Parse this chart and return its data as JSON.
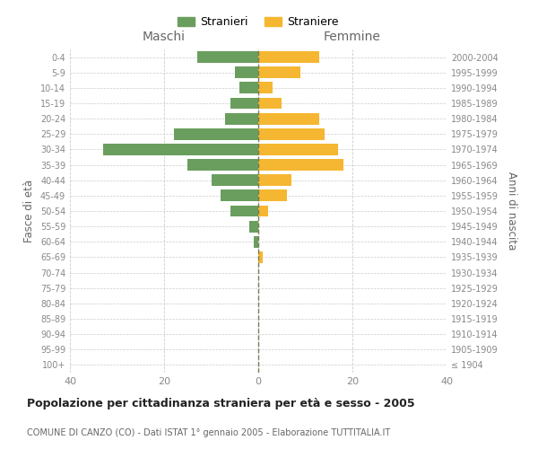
{
  "age_groups": [
    "100+",
    "95-99",
    "90-94",
    "85-89",
    "80-84",
    "75-79",
    "70-74",
    "65-69",
    "60-64",
    "55-59",
    "50-54",
    "45-49",
    "40-44",
    "35-39",
    "30-34",
    "25-29",
    "20-24",
    "15-19",
    "10-14",
    "5-9",
    "0-4"
  ],
  "birth_years": [
    "≤ 1904",
    "1905-1909",
    "1910-1914",
    "1915-1919",
    "1920-1924",
    "1925-1929",
    "1930-1934",
    "1935-1939",
    "1940-1944",
    "1945-1949",
    "1950-1954",
    "1955-1959",
    "1960-1964",
    "1965-1969",
    "1970-1974",
    "1975-1979",
    "1980-1984",
    "1985-1989",
    "1990-1994",
    "1995-1999",
    "2000-2004"
  ],
  "maschi": [
    0,
    0,
    0,
    0,
    0,
    0,
    0,
    0,
    1,
    2,
    6,
    8,
    10,
    15,
    33,
    18,
    7,
    6,
    4,
    5,
    13
  ],
  "femmine": [
    0,
    0,
    0,
    0,
    0,
    0,
    0,
    1,
    0,
    0,
    2,
    6,
    7,
    18,
    17,
    14,
    13,
    5,
    3,
    9,
    13
  ],
  "maschi_color": "#6a9e5e",
  "femmine_color": "#f5b731",
  "center_line_color": "#7a7a55",
  "grid_color": "#cccccc",
  "bg_color": "#ffffff",
  "title": "Popolazione per cittadinanza straniera per età e sesso - 2005",
  "subtitle": "COMUNE DI CANZO (CO) - Dati ISTAT 1° gennaio 2005 - Elaborazione TUTTITALIA.IT",
  "ylabel_left": "Fasce di età",
  "ylabel_right": "Anni di nascita",
  "xlabel_left": "Maschi",
  "xlabel_right": "Femmine",
  "legend_maschi": "Stranieri",
  "legend_femmine": "Straniere",
  "xlim": 40,
  "xticks": [
    -40,
    -20,
    0,
    20,
    40
  ],
  "xticklabels": [
    "40",
    "20",
    "0",
    "20",
    "40"
  ]
}
